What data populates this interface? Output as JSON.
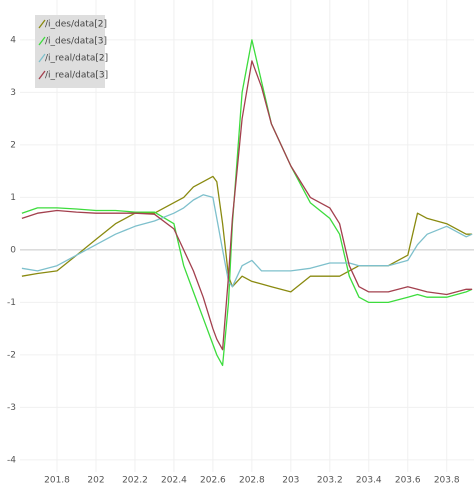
{
  "chart_data": {
    "type": "line",
    "x": [
      201.62,
      201.7,
      201.8,
      201.9,
      202.0,
      202.1,
      202.2,
      202.3,
      202.4,
      202.45,
      202.5,
      202.55,
      202.6,
      202.62,
      202.65,
      202.68,
      202.7,
      202.75,
      202.8,
      202.85,
      202.9,
      203.0,
      203.1,
      203.2,
      203.25,
      203.3,
      203.35,
      203.4,
      203.5,
      203.6,
      203.65,
      203.7,
      203.8,
      203.9,
      203.93
    ],
    "series": [
      {
        "name": "/i_des/data[2]",
        "color": "#8a8a10",
        "values": [
          -0.5,
          -0.45,
          -0.4,
          -0.1,
          0.2,
          0.5,
          0.7,
          0.7,
          0.9,
          1.0,
          1.2,
          1.3,
          1.4,
          1.3,
          0.5,
          -0.5,
          -0.7,
          -0.5,
          -0.6,
          -0.65,
          -0.7,
          -0.8,
          -0.5,
          -0.5,
          -0.5,
          -0.4,
          -0.3,
          -0.3,
          -0.3,
          -0.1,
          0.7,
          0.6,
          0.5,
          0.3,
          0.3
        ]
      },
      {
        "name": "/i_des/data[3]",
        "color": "#3ddc3d",
        "values": [
          0.7,
          0.8,
          0.8,
          0.78,
          0.75,
          0.75,
          0.72,
          0.72,
          0.5,
          -0.3,
          -0.8,
          -1.3,
          -1.8,
          -2.0,
          -2.2,
          -1.0,
          0.5,
          3.0,
          4.0,
          3.2,
          2.4,
          1.6,
          0.9,
          0.6,
          0.3,
          -0.5,
          -0.9,
          -1.0,
          -1.0,
          -0.9,
          -0.85,
          -0.9,
          -0.9,
          -0.8,
          -0.75
        ]
      },
      {
        "name": "/i_real/data[2]",
        "color": "#7ec0cc",
        "values": [
          -0.35,
          -0.4,
          -0.3,
          -0.1,
          0.1,
          0.3,
          0.45,
          0.55,
          0.7,
          0.8,
          0.95,
          1.05,
          1.0,
          0.6,
          0.0,
          -0.6,
          -0.7,
          -0.3,
          -0.2,
          -0.4,
          -0.4,
          -0.4,
          -0.35,
          -0.25,
          -0.25,
          -0.25,
          -0.3,
          -0.3,
          -0.3,
          -0.2,
          0.1,
          0.3,
          0.45,
          0.25,
          0.3
        ]
      },
      {
        "name": "/i_real/data[3]",
        "color": "#a3404e",
        "values": [
          0.6,
          0.7,
          0.75,
          0.72,
          0.7,
          0.7,
          0.7,
          0.68,
          0.4,
          0.0,
          -0.4,
          -0.9,
          -1.5,
          -1.7,
          -1.9,
          -0.5,
          0.6,
          2.5,
          3.6,
          3.1,
          2.4,
          1.6,
          1.0,
          0.8,
          0.5,
          -0.3,
          -0.7,
          -0.8,
          -0.8,
          -0.7,
          -0.75,
          -0.8,
          -0.85,
          -0.75,
          -0.75
        ]
      }
    ],
    "xlim": [
      201.61,
      203.94
    ],
    "ylim": [
      -4.23,
      4.76
    ],
    "xticks": [
      201.8,
      202,
      202.2,
      202.4,
      202.6,
      202.8,
      203,
      203.2,
      203.4,
      203.6,
      203.8
    ],
    "yticks": [
      4,
      3,
      2,
      1,
      0,
      -1,
      -2,
      -3,
      -4
    ],
    "grid": true,
    "legend": "top-left"
  }
}
